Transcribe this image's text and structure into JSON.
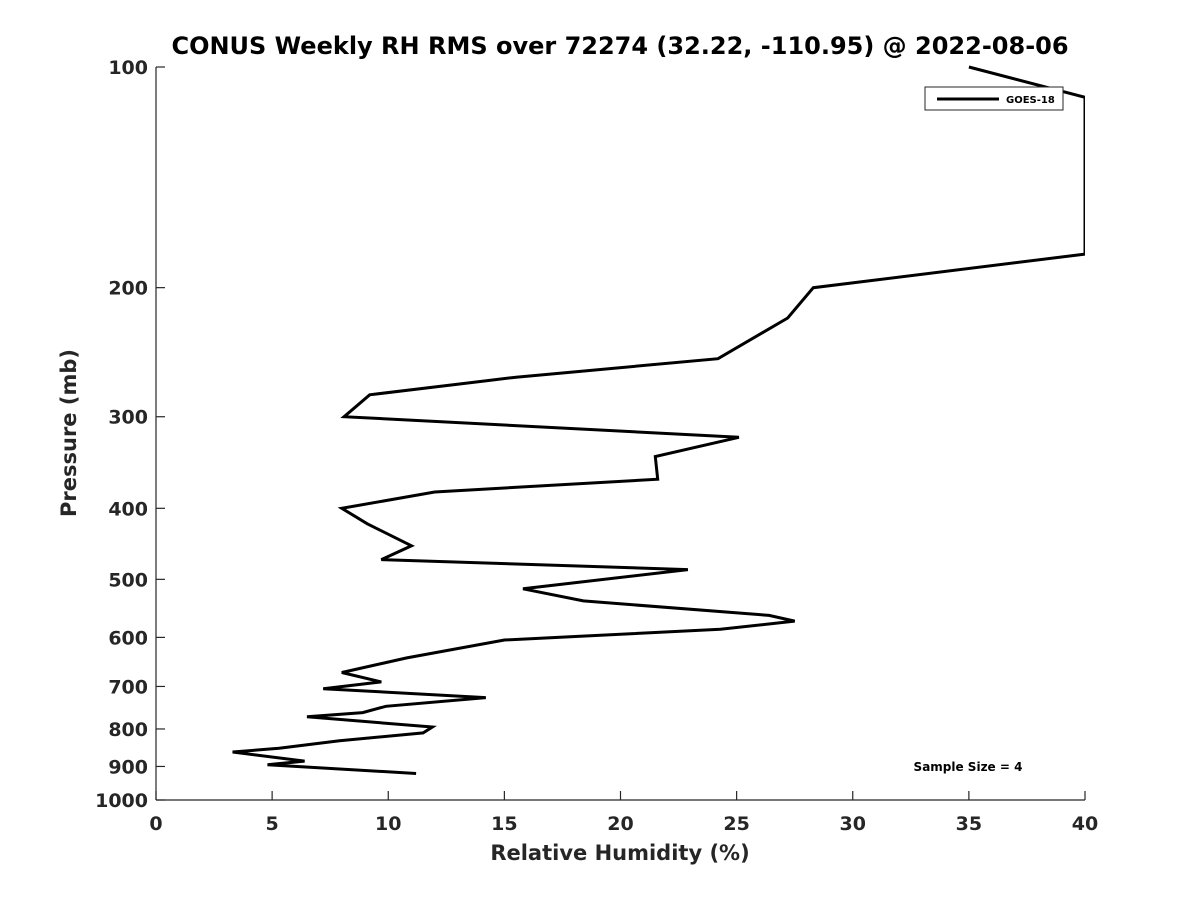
{
  "chart_data": {
    "type": "line",
    "title": "CONUS Weekly RH RMS over 72274 (32.22, -110.95) @ 2022-08-06",
    "xlabel": "Relative Humidity (%)",
    "ylabel": "Pressure (mb)",
    "xlim": [
      0,
      40
    ],
    "ylim": [
      100,
      1000
    ],
    "y_scale": "log",
    "y_direction": "reversed",
    "x_ticks": [
      0,
      5,
      10,
      15,
      20,
      25,
      30,
      35,
      40
    ],
    "x_tick_labels": [
      "0",
      "5",
      "10",
      "15",
      "20",
      "25",
      "30",
      "35",
      "40"
    ],
    "y_ticks": [
      100,
      200,
      300,
      400,
      500,
      600,
      700,
      800,
      900,
      1000
    ],
    "y_tick_labels": [
      "100",
      "200",
      "300",
      "400",
      "500",
      "600",
      "700",
      "800",
      "900",
      "1000"
    ],
    "grid": false,
    "legend_position": "top-right",
    "annotation": "Sample Size = 4",
    "series": [
      {
        "name": "GOES-18",
        "color": "#000000",
        "x": [
          35.0,
          40.0,
          40.0,
          28.3,
          27.2,
          24.2,
          15.5,
          9.2,
          8.1,
          25.1,
          21.5,
          21.6,
          12.0,
          8.0,
          9.1,
          11.0,
          9.7,
          22.9,
          15.8,
          18.4,
          26.4,
          27.5,
          24.3,
          15.0,
          10.8,
          8.0,
          9.7,
          7.2,
          14.2,
          9.9,
          8.9,
          6.5,
          11.9,
          11.5,
          7.9,
          5.3,
          3.3,
          6.4,
          4.8,
          11.2
        ],
        "y": [
          100,
          110,
          180,
          200,
          220,
          250,
          265,
          280,
          300,
          320,
          340,
          365,
          380,
          400,
          420,
          450,
          470,
          485,
          515,
          535,
          560,
          570,
          585,
          605,
          640,
          670,
          690,
          705,
          725,
          745,
          760,
          770,
          795,
          810,
          830,
          850,
          860,
          885,
          895,
          920
        ]
      }
    ]
  }
}
